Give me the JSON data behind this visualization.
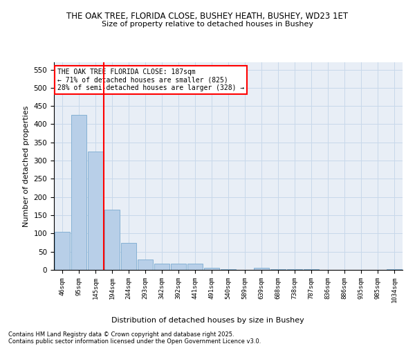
{
  "title_line1": "THE OAK TREE, FLORIDA CLOSE, BUSHEY HEATH, BUSHEY, WD23 1ET",
  "title_line2": "Size of property relative to detached houses in Bushey",
  "xlabel": "Distribution of detached houses by size in Bushey",
  "ylabel": "Number of detached properties",
  "bar_color": "#b8cfe8",
  "bar_edge_color": "#7aaad0",
  "annotation_text": "THE OAK TREE FLORIDA CLOSE: 187sqm\n← 71% of detached houses are smaller (825)\n28% of semi-detached houses are larger (328) →",
  "vline_x_idx": 3,
  "annotation_box_color": "white",
  "annotation_box_edge_color": "red",
  "vline_color": "red",
  "grid_color": "#c8d8ea",
  "background_color": "#e8eef6",
  "footer_line1": "Contains HM Land Registry data © Crown copyright and database right 2025.",
  "footer_line2": "Contains public sector information licensed under the Open Government Licence v3.0.",
  "bin_labels": [
    "46sqm",
    "95sqm",
    "145sqm",
    "194sqm",
    "244sqm",
    "293sqm",
    "342sqm",
    "392sqm",
    "441sqm",
    "491sqm",
    "540sqm",
    "589sqm",
    "639sqm",
    "688sqm",
    "738sqm",
    "787sqm",
    "836sqm",
    "886sqm",
    "935sqm",
    "985sqm",
    "1034sqm"
  ],
  "values": [
    105,
    425,
    325,
    165,
    75,
    28,
    18,
    18,
    18,
    5,
    2,
    0,
    5,
    1,
    1,
    1,
    0,
    0,
    0,
    0,
    1
  ],
  "ylim": [
    0,
    570
  ],
  "yticks": [
    0,
    50,
    100,
    150,
    200,
    250,
    300,
    350,
    400,
    450,
    500,
    550
  ]
}
